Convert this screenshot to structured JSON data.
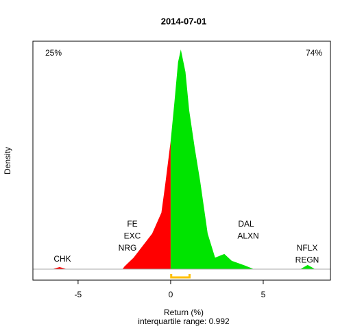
{
  "chart_data": {
    "type": "density",
    "title": "2014-07-01",
    "x_label": "Return (%)",
    "subtitle": "interquartile range: 0.992",
    "y_label": "Density",
    "left_share": "25%",
    "right_share": "74%",
    "negative_color": "#ff0000",
    "positive_color": "#00e400",
    "quartile_color": "#ffc000",
    "x": [
      -6.4,
      -6.0,
      -5.6,
      -2.6,
      -2.5,
      -2.0,
      -1.5,
      -1.0,
      -0.5,
      -0.3,
      0,
      0.2,
      0.4,
      0.55,
      0.8,
      1.0,
      1.3,
      1.6,
      2.0,
      2.4,
      2.9,
      3.3,
      4.0,
      4.5,
      7.0,
      7.4,
      7.8
    ],
    "values": [
      0,
      0.004,
      0,
      0,
      0.005,
      0.022,
      0.045,
      0.068,
      0.108,
      0.16,
      0.245,
      0.318,
      0.396,
      0.42,
      0.377,
      0.304,
      0.232,
      0.167,
      0.068,
      0.022,
      0.029,
      0.016,
      0.007,
      0,
      0,
      0.008,
      0
    ],
    "quartiles": [
      0.03,
      1.02
    ],
    "labels": [
      [
        "CHK"
      ],
      [
        "FE",
        "EXC",
        "NRG"
      ],
      [
        "DAL",
        "ALXN"
      ],
      [
        "NFLX",
        "REGN"
      ]
    ],
    "xlim": [
      -7.44,
      8.63
    ],
    "ylim": [
      -0.021,
      0.436
    ],
    "xticks": [
      -5,
      0,
      5
    ]
  }
}
